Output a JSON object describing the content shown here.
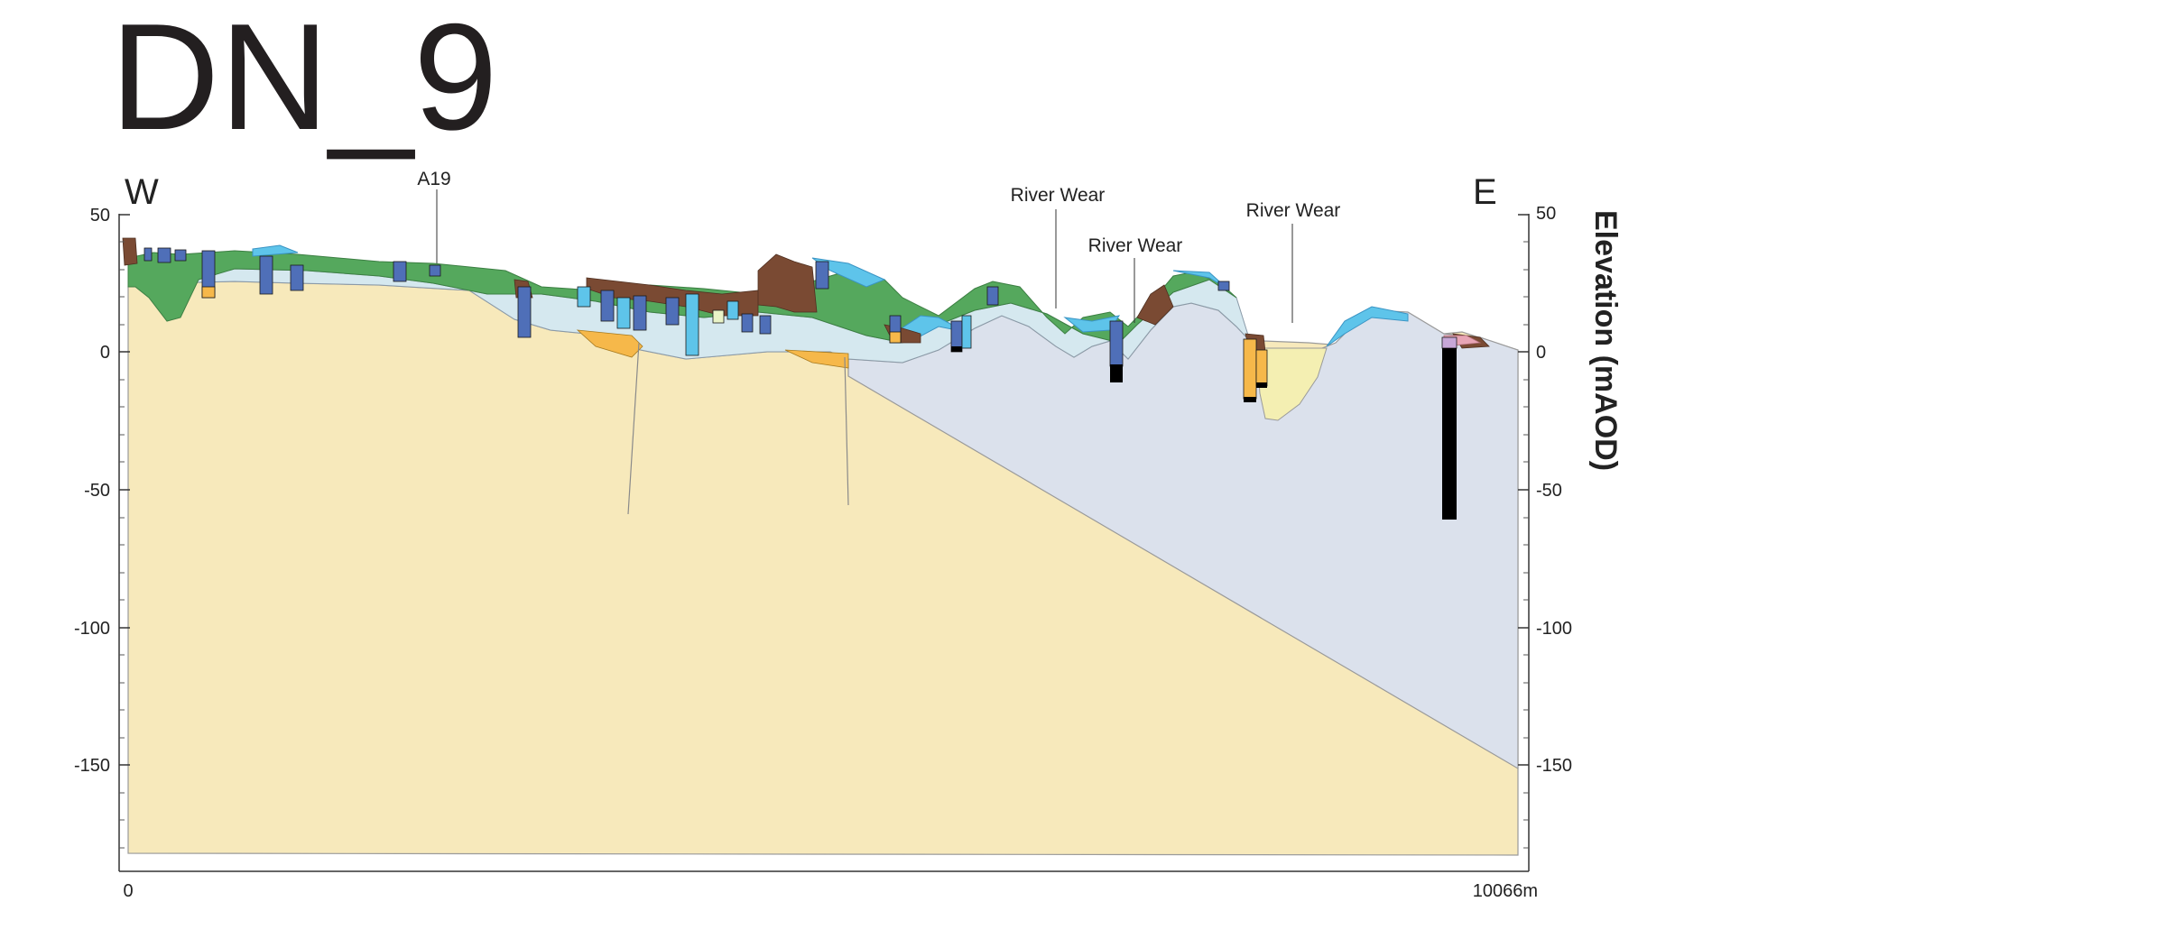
{
  "title": "DN_9",
  "directions": {
    "west": "W",
    "east": "E"
  },
  "axis": {
    "y_label": "Elevation (mAOD)",
    "y_ticks": [
      "50",
      "0",
      "-50",
      "-100",
      "-150"
    ],
    "x_start_label": "0",
    "x_end_label": "10066m"
  },
  "annotations": [
    {
      "label": "A19"
    },
    {
      "label": "River Wear"
    },
    {
      "label": "River Wear"
    },
    {
      "label": "River Wear"
    }
  ],
  "colors": {
    "bedrock_sandstone": "#f7e9bb",
    "bedrock_mudstone": "#dbe1ec",
    "till": "#55a85d",
    "made_ground": "#7a4a33",
    "alluvium": "#5ec4ea",
    "glaciolacustrine": "#d5e8ef",
    "sand_gravel": "#f6b84a",
    "borehole_blue": "#4f6fb8",
    "borehole_black": "#000000",
    "pale_yellow": "#f4efb2",
    "pink": "#e8a5b5"
  }
}
